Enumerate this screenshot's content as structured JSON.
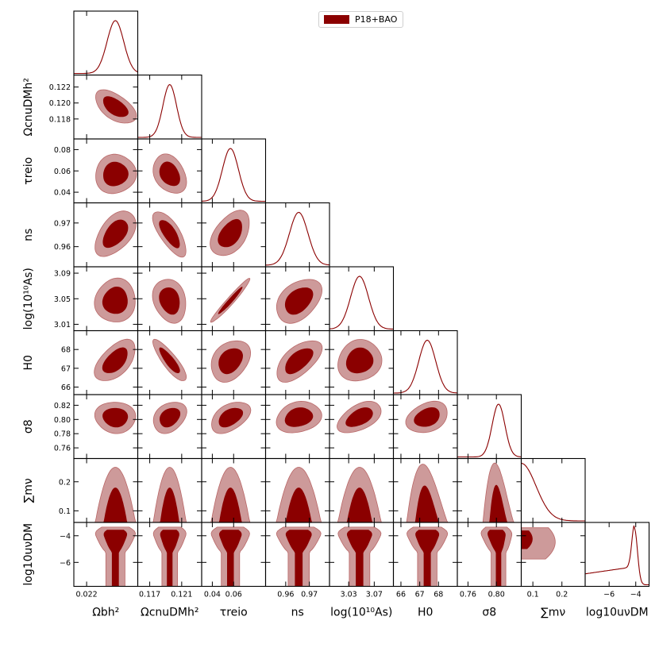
{
  "chart_data": {
    "type": "triangle",
    "legend": {
      "label": "P18+BAO",
      "color": "#8b0000",
      "placement": "top-right"
    },
    "colors": {
      "inner": "#8b0000",
      "outer": "#cd9a9a",
      "outer_edge": "#b96767",
      "line": "#8b0000"
    },
    "parameters": [
      {
        "key": "omega_b",
        "label": "Ωbh²",
        "range": [
          0.0218,
          0.0228
        ],
        "mean": 0.02245,
        "sd": 0.00013,
        "ticks": [
          0.022
        ],
        "tick_labels": [
          "0.022"
        ],
        "row_label": ""
      },
      {
        "key": "omega_cdm",
        "label": "ΩcnuDMh²",
        "range": [
          0.1155,
          0.1235
        ],
        "mean": 0.1195,
        "sd": 0.00085,
        "ticks": [
          0.117,
          0.121
        ],
        "tick_labels": [
          "0.117",
          "0.121"
        ],
        "row_ticks": [
          0.118,
          0.12,
          0.122
        ],
        "row_tick_labels": [
          "0.118",
          "0.120",
          "0.122"
        ]
      },
      {
        "key": "tau",
        "label": "τreio",
        "range": [
          0.03,
          0.09
        ],
        "mean": 0.057,
        "sd": 0.0075,
        "ticks": [
          0.04,
          0.06
        ],
        "tick_labels": [
          "0.04",
          "0.06"
        ],
        "row_ticks": [
          0.04,
          0.06,
          0.08
        ],
        "row_tick_labels": [
          "0.04",
          "0.06",
          "0.08"
        ]
      },
      {
        "key": "n_s",
        "label": "ns",
        "range": [
          0.9515,
          0.9785
        ],
        "mean": 0.9655,
        "sd": 0.0039,
        "ticks": [
          0.96,
          0.97
        ],
        "tick_labels": [
          "0.96",
          "0.97"
        ],
        "row_ticks": [
          0.96,
          0.97
        ],
        "row_tick_labels": [
          "0.96",
          "0.97"
        ]
      },
      {
        "key": "ln10As",
        "label": "log(10¹⁰As)",
        "range": [
          3.0,
          3.1
        ],
        "mean": 3.047,
        "sd": 0.014,
        "ticks": [
          3.03,
          3.07
        ],
        "tick_labels": [
          "3.03",
          "3.07"
        ],
        "row_ticks": [
          3.01,
          3.05,
          3.09
        ],
        "row_tick_labels": [
          "3.01",
          "3.05",
          "3.09"
        ]
      },
      {
        "key": "H0",
        "label": "H0",
        "range": [
          65.6,
          69.0
        ],
        "mean": 67.4,
        "sd": 0.45,
        "ticks": [
          66,
          67,
          68
        ],
        "tick_labels": [
          "66",
          "67",
          "68"
        ],
        "row_ticks": [
          66,
          67,
          68
        ],
        "row_tick_labels": [
          "66",
          "67",
          "68"
        ]
      },
      {
        "key": "sigma8",
        "label": "σ8",
        "range": [
          0.745,
          0.835
        ],
        "mean": 0.803,
        "sd": 0.009,
        "ticks": [
          0.76,
          0.8
        ],
        "tick_labels": [
          "0.76",
          "0.80"
        ],
        "row_ticks": [
          0.76,
          0.78,
          0.8,
          0.82
        ],
        "row_tick_labels": [
          "0.76",
          "0.78",
          "0.80",
          "0.82"
        ]
      },
      {
        "key": "sum_mnu",
        "label": "∑mν",
        "range": [
          0.06,
          0.28
        ],
        "ticks": [
          0.1,
          0.2
        ],
        "tick_labels": [
          "0.1",
          "0.2"
        ],
        "row_ticks": [
          0.1,
          0.2
        ],
        "row_tick_labels": [
          "0.1",
          "0.2"
        ]
      },
      {
        "key": "log10u",
        "label": "log10uνDM",
        "range": [
          -7.8,
          -3.0
        ],
        "ticks": [
          -6,
          -4
        ],
        "tick_labels": [
          "−6",
          "−4"
        ],
        "row_ticks": [
          -6,
          -4
        ],
        "row_tick_labels": [
          "−6",
          "−4"
        ]
      }
    ],
    "correlations": [
      [
        "omega_cdm",
        "omega_b",
        -0.55
      ],
      [
        "tau",
        "omega_b",
        0.05
      ],
      [
        "tau",
        "omega_cdm",
        -0.3
      ],
      [
        "n_s",
        "omega_b",
        0.5
      ],
      [
        "n_s",
        "omega_cdm",
        -0.72
      ],
      [
        "n_s",
        "tau",
        0.45
      ],
      [
        "ln10As",
        "omega_b",
        0.05
      ],
      [
        "ln10As",
        "omega_cdm",
        -0.2
      ],
      [
        "ln10As",
        "tau",
        0.97
      ],
      [
        "ln10As",
        "n_s",
        0.4
      ],
      [
        "H0",
        "omega_b",
        0.55
      ],
      [
        "H0",
        "omega_cdm",
        -0.85
      ],
      [
        "H0",
        "tau",
        0.3
      ],
      [
        "H0",
        "n_s",
        0.6
      ],
      [
        "H0",
        "ln10As",
        0.1
      ],
      [
        "sigma8",
        "omega_b",
        -0.05
      ],
      [
        "sigma8",
        "omega_cdm",
        0.3
      ],
      [
        "sigma8",
        "tau",
        0.45
      ],
      [
        "sigma8",
        "n_s",
        0.2
      ],
      [
        "sigma8",
        "ln10As",
        0.5
      ],
      [
        "sigma8",
        "H0",
        0.3
      ]
    ],
    "mnu_shapes": {
      "omega_b": 0.0,
      "omega_cdm": 0.0,
      "tau": 0.0,
      "n_s": 0.0,
      "ln10As": 0.0,
      "H0": -0.55,
      "sigma8": -0.65,
      "log10u": 0.0
    },
    "log10u_profile": {
      "peak": -4.1,
      "plateau": -6.5
    }
  }
}
